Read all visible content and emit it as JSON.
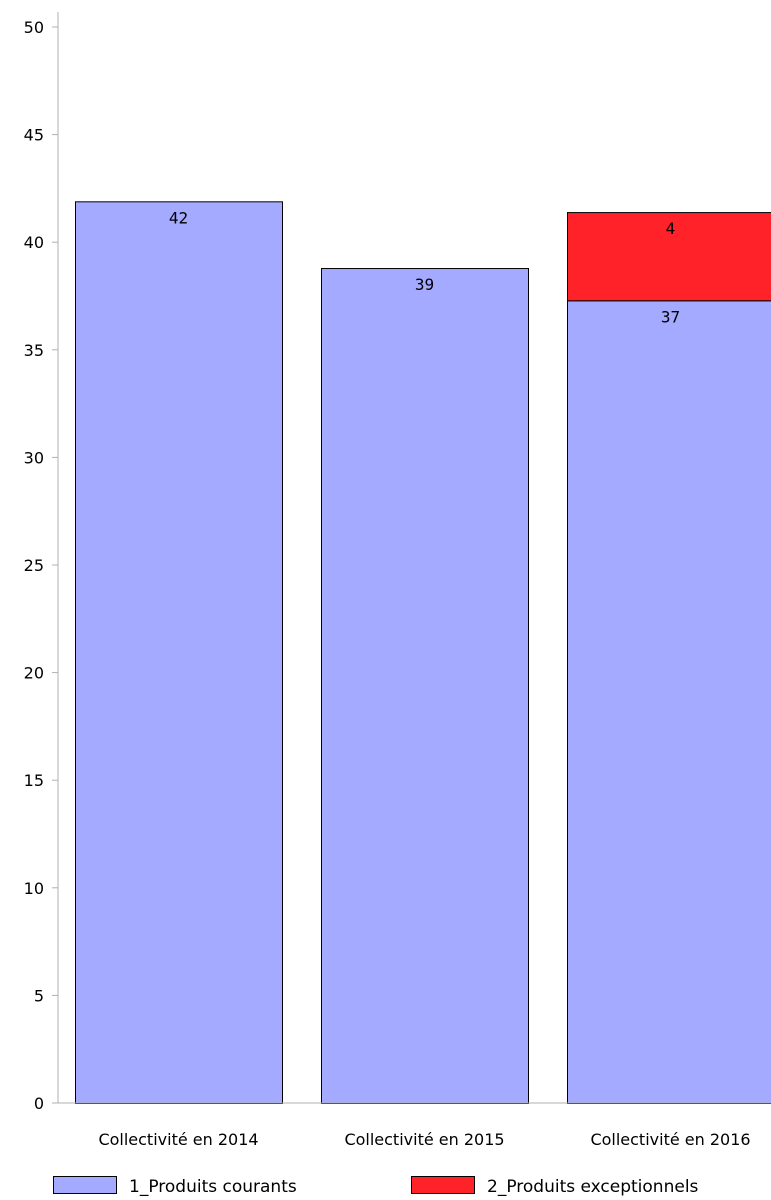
{
  "chart_data": {
    "type": "bar",
    "stacked": true,
    "categories": [
      "Collectivité en 2014",
      "Collectivité en 2015",
      "Collectivité en 2016"
    ],
    "series": [
      {
        "name": "1_Produits courants",
        "color": "#a3aaff",
        "values": [
          41.9,
          38.8,
          37.3
        ],
        "labels": [
          "42",
          "39",
          "37"
        ]
      },
      {
        "name": "2_Produits exceptionnels",
        "color": "#ff2228",
        "values": [
          0,
          0,
          4.1
        ],
        "labels": [
          "",
          "",
          "4"
        ]
      }
    ],
    "yticks": [
      "0",
      "5",
      "10",
      "15",
      "20",
      "25",
      "30",
      "35",
      "40",
      "45",
      "50"
    ],
    "ylim": [
      0,
      50
    ],
    "grid": false,
    "legend_position": "bottom"
  }
}
